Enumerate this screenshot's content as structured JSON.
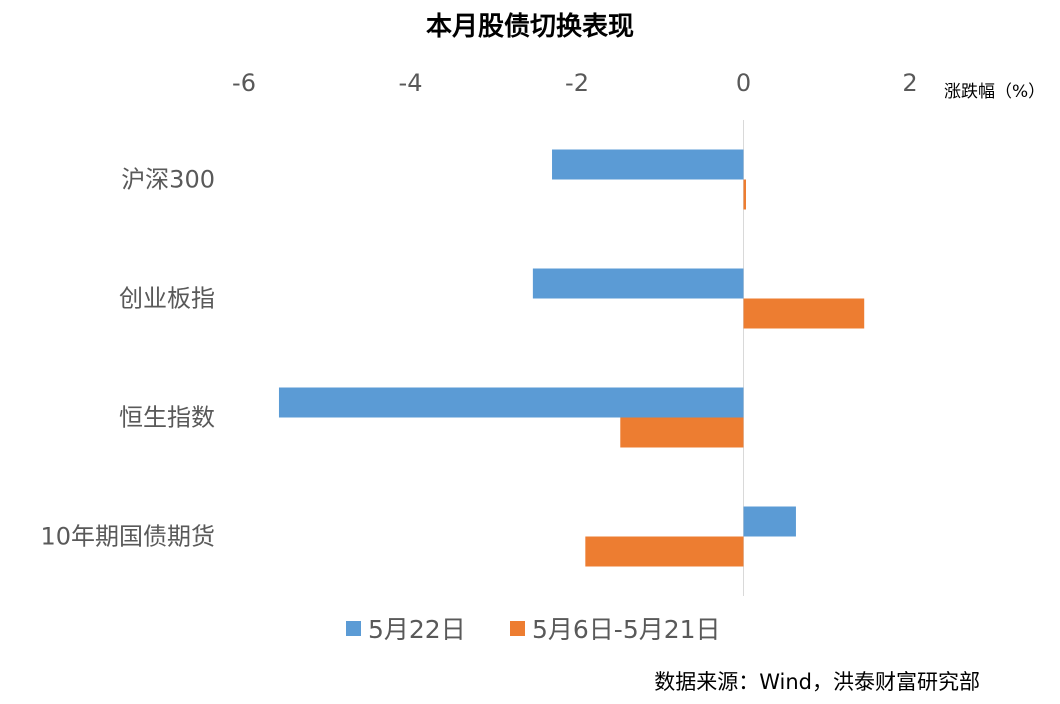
{
  "chart_data": {
    "type": "bar",
    "orientation": "horizontal",
    "title": "本月股债切换表现",
    "unit_label": "涨跌幅（%）",
    "source": "数据来源：Wind，洪泰财富研究部",
    "categories": [
      "沪深300",
      "创业板指",
      "恒生指数",
      "10年期国债期货"
    ],
    "xlim": [
      -6,
      2
    ],
    "xticks": [
      -6,
      -4,
      -2,
      0,
      2
    ],
    "series": [
      {
        "name": "5月22日",
        "color": "#5B9BD5",
        "values": [
          -2.3,
          -2.53,
          -5.58,
          0.63
        ]
      },
      {
        "name": "5月6日-5月21日",
        "color": "#ED7D31",
        "values": [
          0.03,
          1.45,
          -1.48,
          -1.9
        ]
      }
    ],
    "legend_position": "bottom",
    "grid": false
  }
}
